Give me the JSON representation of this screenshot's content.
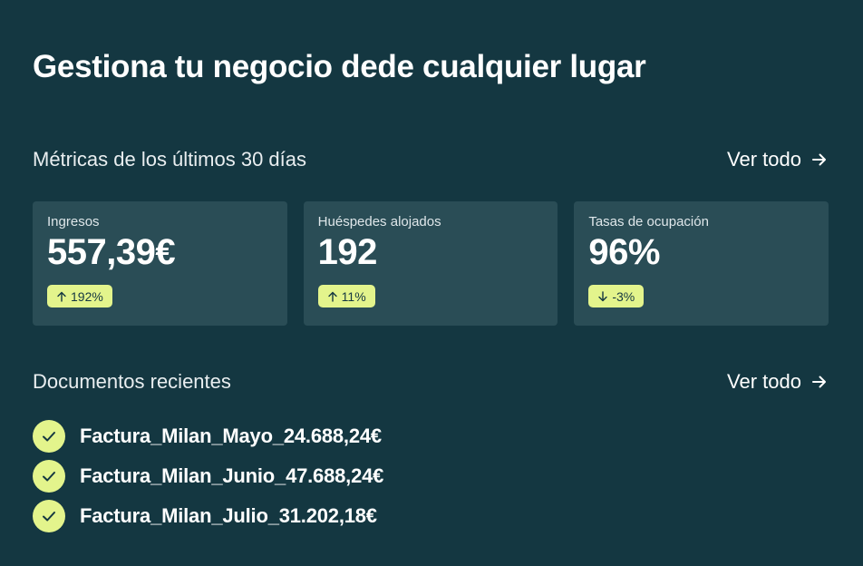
{
  "page": {
    "title": "Gestiona tu negocio dede cualquier lugar"
  },
  "metrics_section": {
    "title": "Métricas de los últimos 30 días",
    "see_all": "Ver todo"
  },
  "metrics": [
    {
      "label": "Ingresos",
      "value": "557,39€",
      "change": "192%",
      "direction": "up",
      "icon": "arrow-up-icon"
    },
    {
      "label": "Huéspedes alojados",
      "value": "192",
      "change": "11%",
      "direction": "up",
      "icon": "arrow-up-icon"
    },
    {
      "label": "Tasas de ocupación",
      "value": "96%",
      "change": "-3%",
      "direction": "down",
      "icon": "arrow-down-icon"
    }
  ],
  "documents_section": {
    "title": "Documentos recientes",
    "see_all": "Ver todo"
  },
  "documents": [
    {
      "name": "Factura_Milan_Mayo_24.688,24€",
      "status_icon": "check-icon"
    },
    {
      "name": "Factura_Milan_Junio_47.688,24€",
      "status_icon": "check-icon"
    },
    {
      "name": "Factura_Milan_Julio_31.202,18€",
      "status_icon": "check-icon"
    }
  ],
  "colors": {
    "background": "#143741",
    "card": "#2a4d56",
    "accent": "#e3f48c",
    "text": "#ffffff"
  }
}
